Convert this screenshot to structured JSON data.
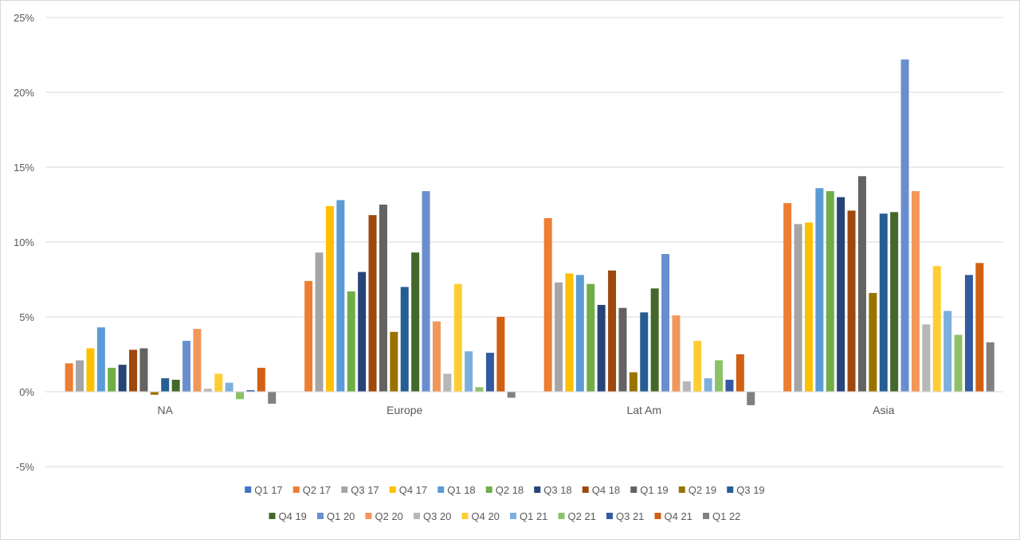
{
  "chart_data": {
    "type": "bar",
    "title": "",
    "xlabel": "",
    "ylabel": "",
    "ylim": [
      -5,
      25
    ],
    "yticks": [
      -5,
      0,
      5,
      10,
      15,
      20,
      25
    ],
    "ytick_labels": [
      "-5%",
      "0%",
      "5%",
      "10%",
      "15%",
      "20%",
      "25%"
    ],
    "grid": true,
    "legend_position": "bottom",
    "categories": [
      "NA",
      "Europe",
      "Lat Am",
      "Asia"
    ],
    "series": [
      {
        "name": "Q1 17",
        "color": "#4472c4",
        "values": [
          null,
          null,
          null,
          null
        ]
      },
      {
        "name": "Q2 17",
        "color": "#ed7d31",
        "values": [
          1.9,
          7.4,
          11.6,
          12.6
        ]
      },
      {
        "name": "Q3 17",
        "color": "#a5a5a5",
        "values": [
          2.1,
          9.3,
          7.3,
          11.2
        ]
      },
      {
        "name": "Q4 17",
        "color": "#ffc000",
        "values": [
          2.9,
          12.4,
          7.9,
          11.3
        ]
      },
      {
        "name": "Q1 18",
        "color": "#5b9bd5",
        "values": [
          4.3,
          12.8,
          7.8,
          13.6
        ]
      },
      {
        "name": "Q2 18",
        "color": "#70ad47",
        "values": [
          1.6,
          6.7,
          7.2,
          13.4
        ]
      },
      {
        "name": "Q3 18",
        "color": "#264478",
        "values": [
          1.8,
          8.0,
          5.8,
          13.0
        ]
      },
      {
        "name": "Q4 18",
        "color": "#9e480e",
        "values": [
          2.8,
          11.8,
          8.1,
          12.1
        ]
      },
      {
        "name": "Q1 19",
        "color": "#636363",
        "values": [
          2.9,
          12.5,
          5.6,
          14.4
        ]
      },
      {
        "name": "Q2 19",
        "color": "#997300",
        "values": [
          -0.2,
          4.0,
          1.3,
          6.6
        ]
      },
      {
        "name": "Q3 19",
        "color": "#255e91",
        "values": [
          0.9,
          7.0,
          5.3,
          11.9
        ]
      },
      {
        "name": "Q4 19",
        "color": "#43682b",
        "values": [
          0.8,
          9.3,
          6.9,
          12.0
        ]
      },
      {
        "name": "Q1 20",
        "color": "#698ed0",
        "values": [
          3.4,
          13.4,
          9.2,
          22.2
        ]
      },
      {
        "name": "Q2 20",
        "color": "#f1975a",
        "values": [
          4.2,
          4.7,
          5.1,
          13.4
        ]
      },
      {
        "name": "Q3 20",
        "color": "#b7b7b7",
        "values": [
          0.2,
          1.2,
          0.7,
          4.5
        ]
      },
      {
        "name": "Q4 20",
        "color": "#ffcd33",
        "values": [
          1.2,
          7.2,
          3.4,
          8.4
        ]
      },
      {
        "name": "Q1 21",
        "color": "#7cafdd",
        "values": [
          0.6,
          2.7,
          0.9,
          5.4
        ]
      },
      {
        "name": "Q2 21",
        "color": "#8cc168",
        "values": [
          -0.5,
          0.3,
          2.1,
          3.8
        ]
      },
      {
        "name": "Q3 21",
        "color": "#335aa1",
        "values": [
          0.1,
          2.6,
          0.8,
          7.8
        ]
      },
      {
        "name": "Q4 21",
        "color": "#d26012",
        "values": [
          1.6,
          5.0,
          2.5,
          8.6
        ]
      },
      {
        "name": "Q1 22",
        "color": "#808080",
        "values": [
          -0.8,
          -0.4,
          -0.9,
          3.3
        ]
      }
    ],
    "legend_rows": [
      [
        "Q1 17",
        "Q2 17",
        "Q3 17",
        "Q4 17",
        "Q1 18",
        "Q2 18",
        "Q3 18",
        "Q4 18",
        "Q1 19",
        "Q2 19",
        "Q3 19"
      ],
      [
        "Q4 19",
        "Q1 20",
        "Q2 20",
        "Q3 20",
        "Q4 20",
        "Q1 21",
        "Q2 21",
        "Q3 21",
        "Q4 21",
        "Q1 22"
      ]
    ],
    "colors": {
      "grid": "#d9d9d9",
      "text": "#595959",
      "border": "#d9d9d9"
    }
  }
}
